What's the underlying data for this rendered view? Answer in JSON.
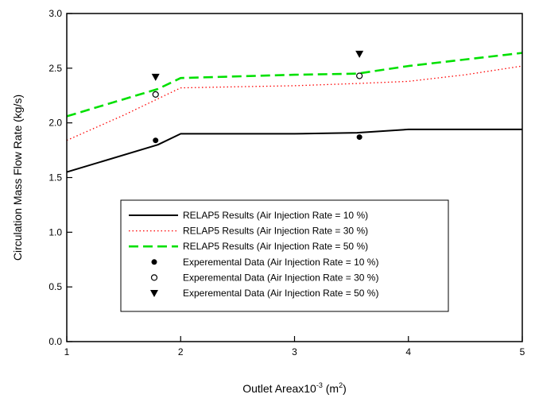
{
  "chart_data": {
    "type": "line",
    "title": "",
    "xlabel": {
      "prefix": "Outlet Areax10",
      "exp1": "-3",
      "middle": " (m",
      "exp2": "2",
      "suffix": ")"
    },
    "ylabel": "Circulation Mass Flow Rate (kg/s)",
    "xlim": [
      1,
      5
    ],
    "ylim": [
      0.0,
      3.0
    ],
    "x_ticks": [
      1,
      2,
      3,
      4,
      5
    ],
    "x_tick_labels": [
      "1",
      "2",
      "3",
      "4",
      "5"
    ],
    "y_ticks": [
      0.0,
      0.5,
      1.0,
      1.5,
      2.0,
      2.5,
      3.0
    ],
    "y_tick_labels": [
      "0.0",
      "0.5",
      "1.0",
      "1.5",
      "2.0",
      "2.5",
      "3.0"
    ],
    "grid": false,
    "legend_placement": "bottom-center",
    "series": [
      {
        "name": "RELAP5 Results (Air Injection Rate = 10 %)",
        "kind": "line",
        "style": "solid",
        "color": "#000000",
        "x": [
          1.0,
          1.8,
          2.0,
          3.0,
          3.55,
          4.0,
          5.0
        ],
        "y": [
          1.55,
          1.8,
          1.9,
          1.9,
          1.91,
          1.94,
          1.94
        ]
      },
      {
        "name": "RELAP5 Results (Air Injection Rate = 30 %)",
        "kind": "line",
        "style": "dotted",
        "color": "#ff0000",
        "x": [
          1.0,
          1.5,
          2.0,
          2.5,
          3.0,
          3.55,
          4.0,
          4.5,
          5.0
        ],
        "y": [
          1.84,
          2.07,
          2.32,
          2.33,
          2.34,
          2.36,
          2.38,
          2.44,
          2.52
        ]
      },
      {
        "name": "RELAP5 Results (Air Injection Rate = 50 %)",
        "kind": "line",
        "style": "dashed",
        "color": "#00e000",
        "x": [
          1.0,
          1.8,
          2.0,
          3.0,
          3.55,
          4.0,
          5.0
        ],
        "y": [
          2.06,
          2.31,
          2.41,
          2.44,
          2.45,
          2.52,
          2.64
        ]
      },
      {
        "name": "Experemental Data (Air Injection Rate = 10 %)",
        "kind": "marker",
        "marker": "filled-circle",
        "color": "#000000",
        "x": [
          1.78,
          3.57
        ],
        "y": [
          1.84,
          1.87
        ]
      },
      {
        "name": "Experemental Data (Air Injection Rate = 30 %)",
        "kind": "marker",
        "marker": "open-circle",
        "color": "#000000",
        "x": [
          1.78,
          3.57
        ],
        "y": [
          2.26,
          2.43
        ]
      },
      {
        "name": "Experemental Data (Air Injection Rate = 50 %)",
        "kind": "marker",
        "marker": "filled-triangle-down",
        "color": "#000000",
        "x": [
          1.78,
          3.57
        ],
        "y": [
          2.42,
          2.63
        ]
      }
    ]
  }
}
